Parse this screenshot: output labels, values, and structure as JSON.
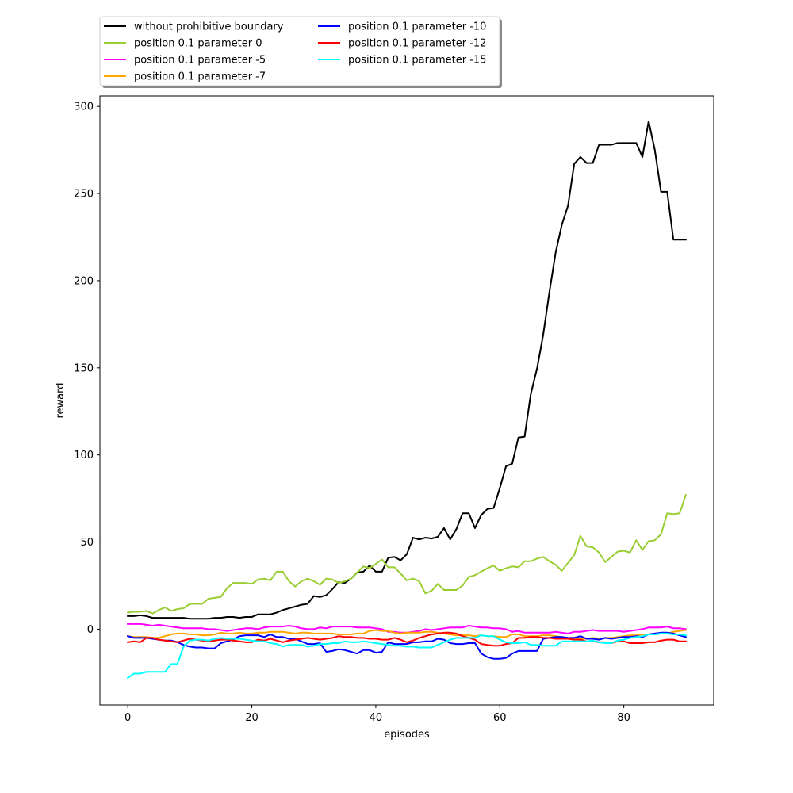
{
  "chart_data": {
    "type": "line",
    "title": "",
    "xlabel": "episodes",
    "ylabel": "reward",
    "xlim": [
      -4.5,
      94.5
    ],
    "ylim": [
      -43.5,
      306
    ],
    "xticks": [
      0,
      20,
      40,
      60,
      80
    ],
    "yticks": [
      0,
      50,
      100,
      150,
      200,
      250,
      300
    ],
    "grid": false,
    "legend_position": "top-left, outside above plot, 2 columns",
    "series": [
      {
        "name": "without prohibitive boundary",
        "color": "#000000",
        "values": [
          7.5,
          7.5,
          8,
          7.5,
          6.5,
          6.5,
          6.5,
          6.5,
          6.5,
          6.5,
          6,
          6,
          6,
          6,
          6.5,
          6.5,
          7,
          7,
          6.5,
          7,
          7,
          8.5,
          8.5,
          8.5,
          9.5,
          11,
          12,
          13,
          14,
          14.5,
          19,
          18.5,
          19.5,
          23,
          27,
          26.5,
          29,
          32.5,
          33,
          36.5,
          33,
          33,
          41,
          41.5,
          39.5,
          43,
          52.5,
          51.5,
          52.5,
          52,
          53,
          58,
          51.5,
          57.5,
          66.5,
          66.5,
          58,
          65.5,
          69,
          69.5,
          81,
          93.5,
          95,
          110,
          110.5,
          135,
          149.5,
          169,
          193.5,
          216,
          232,
          243,
          267,
          271,
          267.5,
          267.5,
          278,
          278,
          278,
          279,
          279,
          279,
          279,
          271,
          291.5,
          275,
          251,
          251,
          223.5,
          223.5,
          223.5
        ]
      },
      {
        "name": "position 0.1 parameter 0",
        "color": "#9acd32",
        "values": [
          9.5,
          10,
          10,
          10.5,
          9,
          11,
          12.5,
          10.5,
          11.5,
          12,
          14.5,
          14.5,
          14.5,
          17.5,
          18,
          18.5,
          23.5,
          26.5,
          26.5,
          26.5,
          26,
          28.5,
          29,
          28,
          33,
          33,
          27.5,
          24.5,
          27.5,
          29,
          27.5,
          25.5,
          29,
          28.5,
          26.5,
          27.5,
          29,
          32.5,
          36,
          35,
          37.5,
          40,
          35.5,
          35.5,
          32,
          28,
          29,
          27.5,
          20.5,
          22,
          26,
          22.5,
          22.5,
          22.5,
          25,
          30,
          31,
          33,
          35,
          36.5,
          33.5,
          35,
          36,
          35.5,
          39,
          39,
          40.5,
          41.5,
          39,
          37,
          33.5,
          38,
          42.5,
          53.5,
          47.5,
          47,
          44,
          38.5,
          41.5,
          44.5,
          45,
          44,
          51,
          45.5,
          50.5,
          51,
          54.5,
          66.5,
          66,
          66.5,
          77
        ]
      },
      {
        "name": "position 0.1 parameter -5",
        "color": "#ff00ff",
        "values": [
          3,
          3,
          3,
          2.5,
          2,
          2.5,
          2,
          1.5,
          1,
          0.5,
          0.5,
          0.5,
          0.5,
          0,
          0,
          -0.5,
          -1,
          -0.5,
          0,
          0.5,
          0.5,
          0,
          1,
          1.5,
          1.5,
          1.5,
          2,
          1.5,
          0.5,
          0,
          0,
          1,
          0.5,
          1.5,
          1.5,
          1.5,
          1.5,
          1,
          1,
          1,
          0.5,
          0,
          -1.5,
          -1.5,
          -2,
          -2,
          -1.5,
          -1,
          0,
          -0.5,
          0,
          0.5,
          1,
          1,
          1,
          2,
          1.5,
          1,
          1,
          0.5,
          0.5,
          0,
          -1.5,
          -1,
          -2,
          -2,
          -2,
          -2,
          -2,
          -1.5,
          -2,
          -2.5,
          -1.5,
          -1.5,
          -1,
          -0.5,
          -1,
          -1,
          -1,
          -1,
          -1.5,
          -1,
          -0.5,
          0,
          1,
          1,
          1,
          1.5,
          0.5,
          0.5,
          0
        ]
      },
      {
        "name": "position 0.1 parameter -7",
        "color": "#ffa500",
        "values": [
          -4,
          -4.5,
          -4.5,
          -4.5,
          -5,
          -5,
          -4,
          -3,
          -2.5,
          -2.5,
          -3,
          -3,
          -3.5,
          -3.5,
          -3,
          -2,
          -2.5,
          -2.5,
          -2,
          -2.5,
          -2.5,
          -2,
          -2,
          -1.5,
          -1.5,
          -1.5,
          -2,
          -2.5,
          -2,
          -2,
          -2.5,
          -2.5,
          -2.5,
          -2.5,
          -3,
          -3,
          -3,
          -2.5,
          -2.5,
          -1,
          -0.5,
          -1,
          -1,
          -2,
          -2.5,
          -2,
          -2,
          -2,
          -1.5,
          -1.5,
          -2,
          -2.5,
          -3,
          -3.5,
          -3.5,
          -3.5,
          -4,
          -3.5,
          -4,
          -4,
          -4.5,
          -4.5,
          -3,
          -3,
          -4,
          -4,
          -4,
          -3.5,
          -3.5,
          -4,
          -4.5,
          -5,
          -5,
          -5.5,
          -5.5,
          -5,
          -5.5,
          -5,
          -5,
          -4.5,
          -4,
          -3.5,
          -3.5,
          -3,
          -3,
          -2.5,
          -2.5,
          -2.5,
          -1.5,
          -1,
          -0.5
        ]
      },
      {
        "name": "position 0.1 parameter -10",
        "color": "#0000ff",
        "values": [
          -4,
          -5,
          -5,
          -5,
          -5.5,
          -6,
          -6.5,
          -6.5,
          -7.5,
          -9,
          -10,
          -10.5,
          -10.5,
          -11,
          -11,
          -8,
          -7,
          -6,
          -4,
          -3.5,
          -3.5,
          -3.5,
          -4.5,
          -3,
          -4.5,
          -4.5,
          -5.5,
          -5.5,
          -7,
          -8.5,
          -8.5,
          -8,
          -13,
          -12.5,
          -11.5,
          -12,
          -13,
          -14,
          -12,
          -12,
          -13.5,
          -13,
          -7.5,
          -8.5,
          -8.5,
          -8.5,
          -7.5,
          -7.5,
          -7,
          -7,
          -5.5,
          -6,
          -8,
          -8.5,
          -8.5,
          -8,
          -8,
          -14,
          -16,
          -17,
          -17,
          -16.5,
          -14,
          -12.5,
          -12.5,
          -12.5,
          -12.5,
          -5.5,
          -5,
          -4.5,
          -4.5,
          -5,
          -5,
          -4,
          -5.5,
          -5.5,
          -6,
          -5,
          -5.5,
          -5,
          -4.5,
          -4.5,
          -4,
          -4.5,
          -3,
          -2.5,
          -2,
          -2,
          -2.5,
          -3.5,
          -4.5
        ]
      },
      {
        "name": "position 0.1 parameter -12",
        "color": "#ff0000",
        "values": [
          -7.5,
          -7,
          -7.5,
          -5,
          -5,
          -6,
          -6.5,
          -7,
          -7.5,
          -6.5,
          -5.5,
          -6,
          -6.5,
          -7,
          -6.5,
          -6,
          -6,
          -6.5,
          -7,
          -7.5,
          -7.5,
          -6,
          -6.5,
          -5.5,
          -6.5,
          -7.5,
          -6.5,
          -6,
          -5.5,
          -5,
          -5.5,
          -6,
          -5.5,
          -5,
          -4,
          -4.5,
          -4.5,
          -5,
          -5,
          -5.5,
          -5.5,
          -6,
          -6,
          -5,
          -6,
          -7.5,
          -6.5,
          -5,
          -4,
          -3,
          -2.5,
          -2,
          -2,
          -2.5,
          -4,
          -5,
          -6,
          -8.5,
          -9,
          -9.5,
          -9.5,
          -8.5,
          -8,
          -5,
          -5,
          -4.5,
          -4.5,
          -5,
          -5,
          -5.5,
          -5.5,
          -5.5,
          -6,
          -6,
          -7,
          -7,
          -7.5,
          -7.5,
          -8,
          -7,
          -7,
          -8,
          -8,
          -8,
          -7.5,
          -7.5,
          -6.5,
          -6,
          -6,
          -7,
          -7
        ]
      },
      {
        "name": "position 0.1 parameter -15",
        "color": "#00ffff",
        "values": [
          -28,
          -25.5,
          -25.5,
          -24.5,
          -24.5,
          -24.5,
          -24.5,
          -20,
          -20,
          -10,
          -6.5,
          -6,
          -6,
          -6.5,
          -5.5,
          -5,
          -5.5,
          -5.5,
          -5.5,
          -6,
          -6.5,
          -7,
          -7,
          -8,
          -8.5,
          -10,
          -9,
          -9,
          -9,
          -10,
          -9.5,
          -8.5,
          -8.5,
          -8,
          -8,
          -7,
          -7.5,
          -7.5,
          -7,
          -7.5,
          -8,
          -8.5,
          -9,
          -9.5,
          -9.5,
          -10,
          -10,
          -10.5,
          -10.5,
          -10.5,
          -9,
          -7.5,
          -6,
          -5,
          -5,
          -5,
          -5,
          -3.5,
          -4,
          -4,
          -6,
          -7.5,
          -8,
          -8,
          -7.5,
          -9,
          -9,
          -9.5,
          -9.5,
          -9.5,
          -7,
          -7,
          -7,
          -7,
          -7,
          -6.5,
          -7.5,
          -8,
          -8,
          -6.5,
          -6,
          -5,
          -4.5,
          -4,
          -3,
          -3,
          -2.5,
          -2.5,
          -3,
          -3,
          -3.5
        ]
      }
    ]
  }
}
